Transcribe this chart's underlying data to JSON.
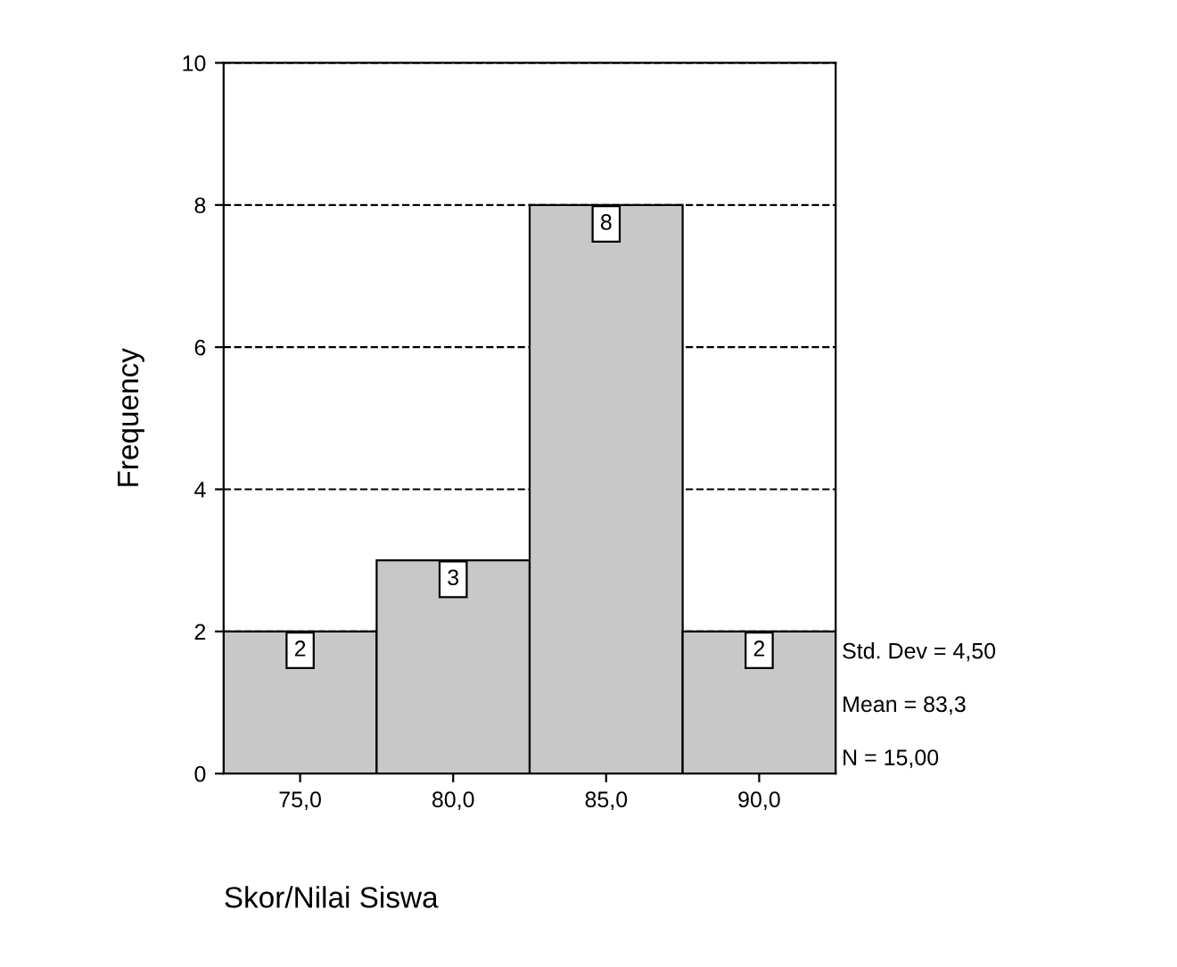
{
  "chart_data": {
    "type": "histogram",
    "xlabel": "Skor/Nilai Siswa",
    "ylabel": "Frequency",
    "bins": [
      72.5,
      77.5,
      82.5,
      87.5,
      92.5
    ],
    "values": [
      2,
      3,
      8,
      2
    ],
    "color": "#c8c8c8",
    "xlim": [
      72.5,
      92.5
    ],
    "xticks": [
      {
        "value": 75,
        "label": "75,0"
      },
      {
        "value": 80,
        "label": "80,0"
      },
      {
        "value": 85,
        "label": "85,0"
      },
      {
        "value": 90,
        "label": "90,0"
      }
    ],
    "ylim": [
      0,
      10
    ],
    "yticks": [
      0,
      2,
      4,
      6,
      8,
      10
    ],
    "grid": "y",
    "line_style": "dashed",
    "data_labels": true,
    "annotations": [
      "Std. Dev = 4,50",
      "Mean = 83,3",
      "N = 15,00"
    ]
  }
}
